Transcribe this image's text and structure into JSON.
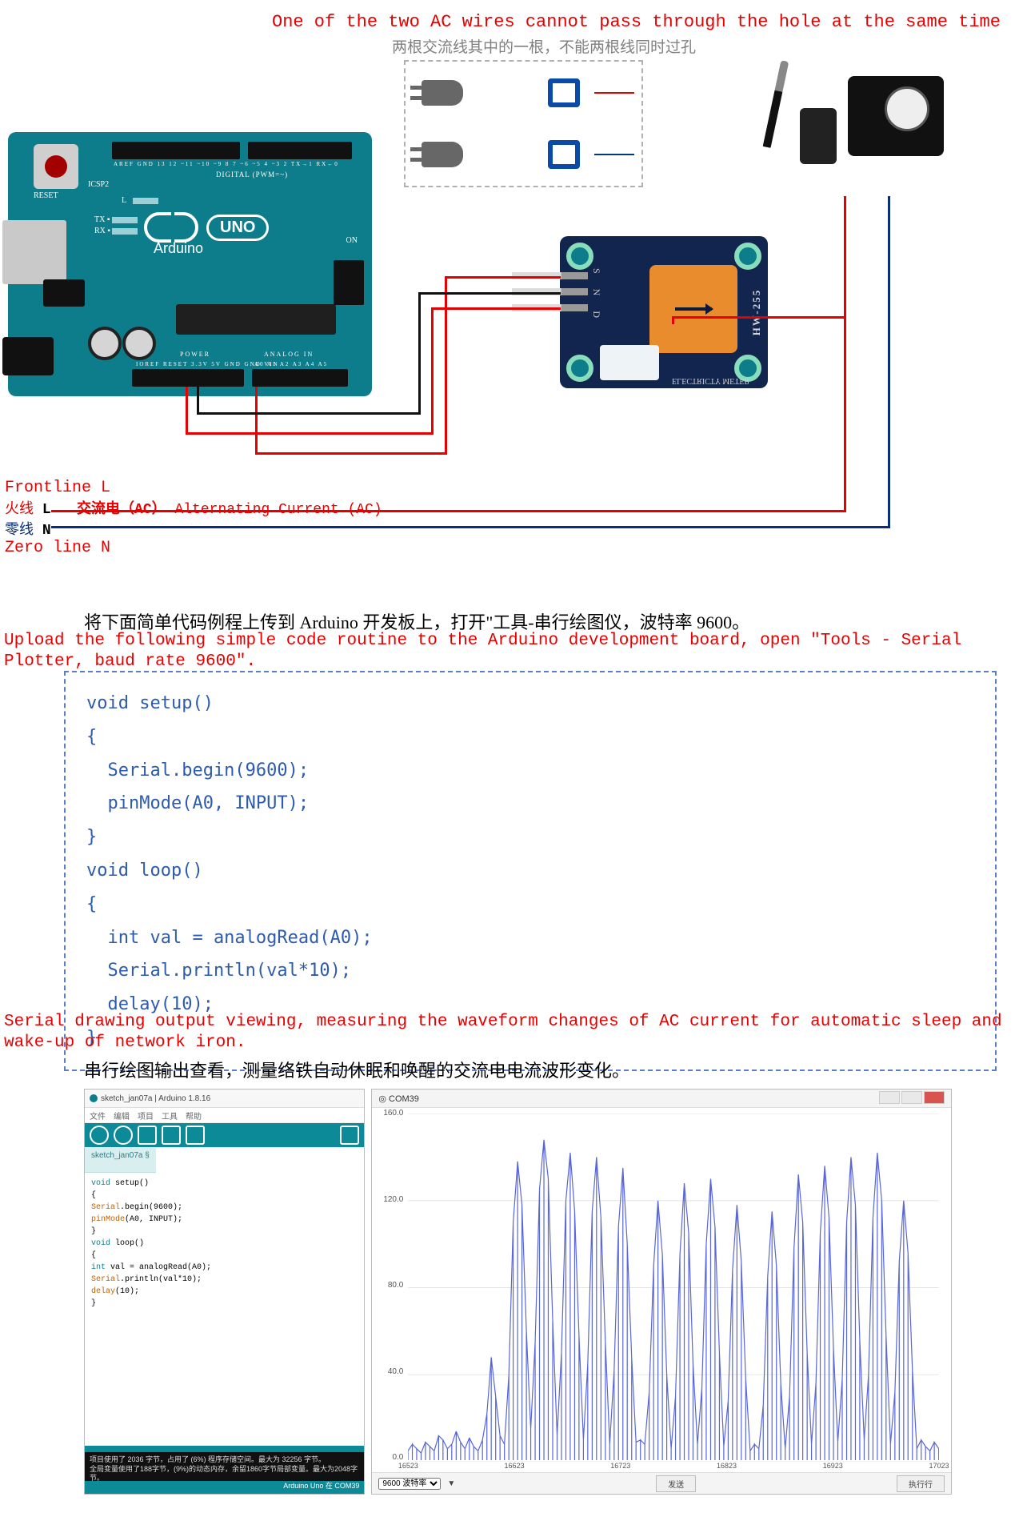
{
  "warning": {
    "en": "One of the two AC wires cannot pass through the hole at the same time",
    "cn": "两根交流线其中的一根，不能两根线同时过孔"
  },
  "arduino": {
    "reset": "RESET",
    "brand": "Arduino",
    "uno": "UNO",
    "icsp2": "ICSP2",
    "on": "ON",
    "L": "L",
    "TX": "TX ▪",
    "RX": "RX ▪",
    "digital": "DIGITAL (PWM=~)",
    "power": "POWER",
    "analog": "ANALOG IN",
    "topPins": "AREF GND 13 12 ~11 ~10 ~9 8   7 ~6 ~5 4 ~3 2 TX→1 RX←0",
    "botPinsL": "IOREF RESET 3.3V 5V GND GND VIN",
    "botPinsR": "A0  A1  A2  A3  A4  A5",
    "board_color": "#0d7d8c"
  },
  "module": {
    "pinLabels": "S N D",
    "side": "HW-255",
    "bottom": "ELECTRICTY METER",
    "board_color": "#11254f",
    "ct_color": "#e88c2e"
  },
  "ac": {
    "front_en": "Frontline L",
    "live_cn": "火线",
    "L": "L",
    "ac_cn": "交流电（AC）",
    "ac_en": "Alternating Current (AC)",
    "neutral_cn": "零线",
    "N": "N",
    "zero_en": "Zero line N"
  },
  "instruction": {
    "cn": "将下面简单代码例程上传到 Arduino 开发板上，打开\"工具-串行绘图仪，波特率 9600。",
    "en": "Upload the following simple code routine to the Arduino development board, open \"Tools - Serial Plotter, baud rate 9600\"."
  },
  "code": {
    "font_family": "Courier New",
    "color": "#2c5bb0",
    "border_color": "#5a7fc4",
    "text": "void setup()\n{\n  Serial.begin(9600);\n  pinMode(A0, INPUT);\n}\nvoid loop()\n{\n  int val = analogRead(A0);\n  Serial.println(val*10);\n  delay(10);\n}"
  },
  "serial": {
    "en": "Serial drawing output viewing, measuring the waveform changes of AC current for automatic sleep and wake-up of network iron.",
    "cn": "串行绘图输出查看，测量络铁自动休眠和唤醒的交流电电流波形变化。"
  },
  "ide": {
    "title": "sketch_jan07a | Arduino 1.8.16",
    "menu": [
      "文件",
      "编辑",
      "项目",
      "工具",
      "帮助"
    ],
    "tab": "sketch_jan07a §",
    "lines": [
      {
        "t": "void",
        "c": "ty",
        "rest": " setup()"
      },
      {
        "t": "{",
        "c": ""
      },
      {
        "t": "  Serial",
        "c": "fn",
        "rest": ".begin(9600);"
      },
      {
        "t": "  pinMode",
        "c": "fn",
        "rest": "(A0, INPUT);"
      },
      {
        "t": "}",
        "c": ""
      },
      {
        "t": "void",
        "c": "ty",
        "rest": " loop()"
      },
      {
        "t": "{",
        "c": ""
      },
      {
        "t": "  int",
        "c": "ty",
        "rest": " val = analogRead(A0);"
      },
      {
        "t": "  Serial",
        "c": "fn",
        "rest": ".println(val*10);"
      },
      {
        "t": "  delay",
        "c": "fn",
        "rest": "(10);"
      },
      {
        "t": "}",
        "c": ""
      }
    ],
    "status1": "项目使用了 2036 字节，占用了 (6%) 程序存储空间。最大为 32256 字节。",
    "status2": "全局变量使用了188字节，(9%)的动态内存，余留1860字节局部变量。最大为2048字节。",
    "footer": "Arduino Uno 在 COM39"
  },
  "plotter": {
    "title": "COM39",
    "y": {
      "min": 0,
      "max": 160,
      "step": 40,
      "labels": [
        "0.0",
        "40.0",
        "80.0",
        "120.0",
        "160.0"
      ]
    },
    "x": {
      "labels": [
        "16523",
        "16623",
        "16723",
        "16823",
        "16923",
        "17023"
      ]
    },
    "series_color": "#5a67d8",
    "grid_color": "#e5e5e5",
    "baud_label": "9600 波特率",
    "send": "发送",
    "run": "执行行",
    "data": [
      5,
      8,
      6,
      4,
      9,
      7,
      5,
      12,
      10,
      6,
      8,
      14,
      9,
      6,
      11,
      7,
      5,
      10,
      22,
      48,
      30,
      12,
      8,
      40,
      110,
      138,
      118,
      60,
      15,
      55,
      125,
      148,
      130,
      65,
      12,
      50,
      120,
      142,
      115,
      58,
      10,
      45,
      115,
      140,
      112,
      55,
      8,
      42,
      108,
      135,
      100,
      48,
      9,
      10,
      8,
      32,
      90,
      120,
      95,
      40,
      6,
      30,
      95,
      128,
      105,
      45,
      8,
      34,
      100,
      130,
      108,
      50,
      7,
      28,
      88,
      118,
      92,
      38,
      5,
      8,
      6,
      26,
      85,
      115,
      90,
      36,
      6,
      30,
      98,
      132,
      110,
      50,
      8,
      36,
      105,
      136,
      112,
      52,
      9,
      38,
      110,
      140,
      118,
      56,
      10,
      40,
      112,
      142,
      120,
      58,
      8,
      32,
      92,
      120,
      96,
      42,
      6,
      10,
      7,
      5,
      9,
      6
    ]
  },
  "wires": {
    "colors": {
      "live": "#e60000",
      "neutral": "#0a2e7a",
      "sig": "#e60000",
      "gnd": "#111111"
    }
  }
}
